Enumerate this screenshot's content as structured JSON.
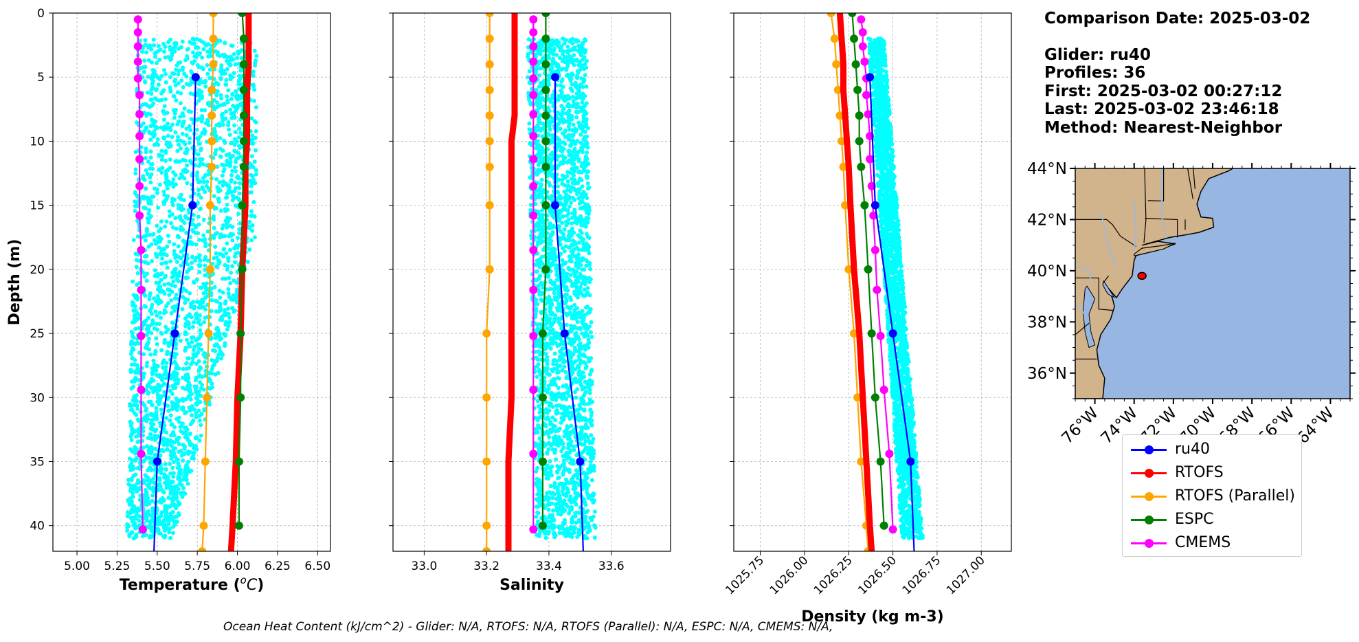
{
  "info": {
    "comparison_date": "Comparison Date: 2025-03-02",
    "glider": "Glider: ru40",
    "profiles": "Profiles: 36",
    "first": "First: 2025-03-02 00:27:12",
    "last": "Last: 2025-03-02 23:46:18",
    "method": "Method: Nearest-Neighbor"
  },
  "footer_text": "Ocean Heat Content (kJ/cm^2) - Glider: N/A,  RTOFS: N/A,  RTOFS (Parallel): N/A,  ESPC: N/A,  CMEMS: N/A,",
  "legend": [
    {
      "name": "ru40",
      "color": "#0000ff"
    },
    {
      "name": "RTOFS",
      "color": "#ff0000"
    },
    {
      "name": "RTOFS (Parallel)",
      "color": "#ffa500"
    },
    {
      "name": "ESPC",
      "color": "#008000"
    },
    {
      "name": "CMEMS",
      "color": "#ff00ff"
    }
  ],
  "colors": {
    "glider_scatter": "#00ffff",
    "land": "#d2b48c",
    "ocean": "#98b6e2",
    "rivers": "#a3b8d6"
  },
  "chart_data": [
    {
      "type": "line",
      "panel": "temperature",
      "xlabel": "Temperature (°C)",
      "ylabel": "Depth (m)",
      "xlim": [
        4.85,
        6.58
      ],
      "ylim": [
        42,
        0
      ],
      "xticks": [
        "5.00",
        "5.25",
        "5.50",
        "5.75",
        "6.00",
        "6.25",
        "6.50"
      ],
      "yticks": [
        "0",
        "5",
        "10",
        "15",
        "20",
        "25",
        "30",
        "35",
        "40"
      ],
      "grid": true,
      "glider_scatter_range": {
        "depth": [
          2,
          41
        ],
        "x_min_top": 5.38,
        "x_max_top": 6.12,
        "x_min_bottom": 5.31,
        "x_max_bottom": 5.6
      },
      "series": [
        {
          "name": "ru40",
          "depth": [
            5,
            15,
            25,
            35,
            42
          ],
          "values": [
            5.74,
            5.72,
            5.61,
            5.5,
            5.48
          ]
        },
        {
          "name": "RTOFS",
          "depth": [
            0,
            2,
            4,
            6,
            8,
            10,
            12,
            15,
            20,
            25,
            30,
            35,
            40,
            42
          ],
          "values": [
            6.07,
            6.07,
            6.07,
            6.06,
            6.06,
            6.06,
            6.05,
            6.05,
            6.03,
            6.02,
            6.0,
            5.99,
            5.97,
            5.96
          ]
        },
        {
          "name": "RTOFS (Parallel)",
          "depth": [
            0,
            2,
            4,
            6,
            8,
            10,
            12,
            15,
            20,
            25,
            30,
            35,
            40,
            42
          ],
          "values": [
            5.85,
            5.85,
            5.85,
            5.84,
            5.84,
            5.84,
            5.84,
            5.83,
            5.83,
            5.82,
            5.81,
            5.8,
            5.79,
            5.78
          ]
        },
        {
          "name": "ESPC",
          "depth": [
            0,
            2,
            4,
            6,
            8,
            10,
            12,
            15,
            20,
            25,
            30,
            35,
            40
          ],
          "values": [
            6.03,
            6.04,
            6.04,
            6.04,
            6.04,
            6.04,
            6.04,
            6.03,
            6.03,
            6.02,
            6.02,
            6.01,
            6.01
          ]
        },
        {
          "name": "CMEMS",
          "depth": [
            0.5,
            1.5,
            2.6,
            3.8,
            5.1,
            6.4,
            7.9,
            9.6,
            11.4,
            13.5,
            15.8,
            18.5,
            21.6,
            25.2,
            29.4,
            34.4,
            40.3
          ],
          "values": [
            5.38,
            5.38,
            5.38,
            5.38,
            5.38,
            5.39,
            5.39,
            5.39,
            5.39,
            5.39,
            5.39,
            5.4,
            5.4,
            5.4,
            5.4,
            5.4,
            5.41
          ]
        }
      ]
    },
    {
      "type": "line",
      "panel": "salinity",
      "xlabel": "Salinity",
      "xlim": [
        32.9,
        33.79
      ],
      "ylim": [
        42,
        0
      ],
      "xticks": [
        "33.0",
        "33.2",
        "33.4",
        "33.6"
      ],
      "grid": true,
      "glider_scatter_range": {
        "depth": [
          2,
          41
        ],
        "x_min_top": 33.33,
        "x_max_top": 33.52,
        "x_min_bottom": 33.36,
        "x_max_bottom": 33.55
      },
      "series": [
        {
          "name": "ru40",
          "depth": [
            5,
            15,
            25,
            35,
            42
          ],
          "values": [
            33.42,
            33.42,
            33.45,
            33.5,
            33.51
          ]
        },
        {
          "name": "RTOFS",
          "depth": [
            0,
            2,
            4,
            6,
            8,
            10,
            12,
            15,
            20,
            25,
            30,
            35,
            40,
            42
          ],
          "values": [
            33.29,
            33.29,
            33.29,
            33.29,
            33.29,
            33.28,
            33.28,
            33.28,
            33.28,
            33.28,
            33.28,
            33.27,
            33.27,
            33.27
          ]
        },
        {
          "name": "RTOFS (Parallel)",
          "depth": [
            0,
            2,
            4,
            6,
            8,
            10,
            12,
            15,
            20,
            25,
            30,
            35,
            40,
            42
          ],
          "values": [
            33.21,
            33.21,
            33.21,
            33.21,
            33.21,
            33.21,
            33.21,
            33.21,
            33.21,
            33.2,
            33.2,
            33.2,
            33.2,
            33.2
          ]
        },
        {
          "name": "ESPC",
          "depth": [
            0,
            2,
            4,
            6,
            8,
            10,
            12,
            15,
            20,
            25,
            30,
            35,
            40
          ],
          "values": [
            33.39,
            33.39,
            33.39,
            33.39,
            33.39,
            33.39,
            33.39,
            33.39,
            33.39,
            33.38,
            33.38,
            33.38,
            33.38
          ]
        },
        {
          "name": "CMEMS",
          "depth": [
            0.5,
            1.5,
            2.6,
            3.8,
            5.1,
            6.4,
            7.9,
            9.6,
            11.4,
            13.5,
            15.8,
            18.5,
            21.6,
            25.2,
            29.4,
            34.4,
            40.3
          ],
          "values": [
            33.35,
            33.35,
            33.35,
            33.35,
            33.35,
            33.35,
            33.35,
            33.35,
            33.35,
            33.35,
            33.35,
            33.35,
            33.35,
            33.35,
            33.35,
            33.35,
            33.35
          ]
        }
      ]
    },
    {
      "type": "line",
      "panel": "density",
      "xlabel": "Density (kg m-3)",
      "xlim": [
        1025.6,
        1027.17
      ],
      "ylim": [
        42,
        0
      ],
      "xticks": [
        "1025.75",
        "1026.00",
        "1026.25",
        "1026.50",
        "1026.75",
        "1027.00"
      ],
      "grid": true,
      "glider_scatter_range": {
        "depth": [
          2,
          41
        ],
        "x_min_top": 1026.36,
        "x_max_top": 1026.45,
        "x_min_bottom": 1026.55,
        "x_max_bottom": 1026.67
      },
      "series": [
        {
          "name": "ru40",
          "depth": [
            5,
            15,
            25,
            35,
            42
          ],
          "values": [
            1026.37,
            1026.4,
            1026.5,
            1026.6,
            1026.62
          ]
        },
        {
          "name": "RTOFS",
          "depth": [
            0,
            2,
            4,
            6,
            8,
            10,
            12,
            15,
            20,
            25,
            30,
            35,
            40,
            42
          ],
          "values": [
            1026.2,
            1026.21,
            1026.22,
            1026.22,
            1026.23,
            1026.24,
            1026.25,
            1026.26,
            1026.28,
            1026.31,
            1026.33,
            1026.35,
            1026.37,
            1026.38
          ]
        },
        {
          "name": "RTOFS (Parallel)",
          "depth": [
            0,
            2,
            4,
            6,
            8,
            10,
            12,
            15,
            20,
            25,
            30,
            35,
            40,
            42
          ],
          "values": [
            1026.15,
            1026.17,
            1026.18,
            1026.19,
            1026.2,
            1026.21,
            1026.22,
            1026.23,
            1026.25,
            1026.28,
            1026.3,
            1026.32,
            1026.35,
            1026.36
          ]
        },
        {
          "name": "ESPC",
          "depth": [
            0,
            2,
            4,
            6,
            8,
            10,
            12,
            15,
            20,
            25,
            30,
            35,
            40
          ],
          "values": [
            1026.27,
            1026.28,
            1026.29,
            1026.3,
            1026.31,
            1026.31,
            1026.32,
            1026.34,
            1026.36,
            1026.38,
            1026.4,
            1026.43,
            1026.45
          ]
        },
        {
          "name": "CMEMS",
          "depth": [
            0.5,
            1.5,
            2.6,
            3.8,
            5.1,
            6.4,
            7.9,
            9.6,
            11.4,
            13.5,
            15.8,
            18.5,
            21.6,
            25.2,
            29.4,
            34.4,
            40.3
          ],
          "values": [
            1026.32,
            1026.33,
            1026.33,
            1026.34,
            1026.35,
            1026.35,
            1026.36,
            1026.37,
            1026.37,
            1026.38,
            1026.39,
            1026.4,
            1026.41,
            1026.43,
            1026.45,
            1026.48,
            1026.5
          ]
        }
      ]
    },
    {
      "type": "map",
      "panel": "map",
      "xticks": [
        "76°W",
        "74°W",
        "72°W",
        "70°W",
        "68°W",
        "66°W",
        "64°W"
      ],
      "yticks": [
        "44°N",
        "42°N",
        "40°N",
        "38°N",
        "36°N"
      ],
      "lon_range": [
        -77,
        -63
      ],
      "lat_range": [
        35,
        44
      ],
      "glider_track": {
        "lon": -73.6,
        "lat": 39.8
      }
    }
  ]
}
